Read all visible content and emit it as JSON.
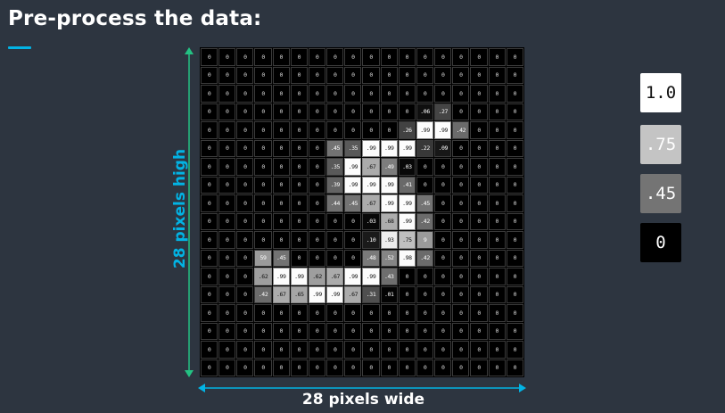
{
  "title": "Pre-process the data:",
  "axis_labels": {
    "height": "28 pixels high",
    "width": "28 pixels wide"
  },
  "legend": [
    {
      "label": "1.0",
      "bg": "#ffffff",
      "fg": "#111111"
    },
    {
      "label": ".75",
      "bg": "#c4c4c4",
      "fg": "#ffffff"
    },
    {
      "label": ".45",
      "bg": "#747474",
      "fg": "#ffffff"
    },
    {
      "label": "0",
      "bg": "#000000",
      "fg": "#ffffff"
    }
  ],
  "colors": {
    "accent": "#02b3e4",
    "background": "#2d3540"
  },
  "grid": {
    "rows": 18,
    "cols": 18,
    "nonzero": [
      {
        "r": 3,
        "c": 12,
        "v": ".06"
      },
      {
        "r": 3,
        "c": 13,
        "v": ".27"
      },
      {
        "r": 4,
        "c": 11,
        "v": ".26"
      },
      {
        "r": 4,
        "c": 12,
        "v": ".99"
      },
      {
        "r": 4,
        "c": 13,
        "v": ".99"
      },
      {
        "r": 4,
        "c": 14,
        "v": ".42"
      },
      {
        "r": 5,
        "c": 7,
        "v": ".45"
      },
      {
        "r": 5,
        "c": 8,
        "v": ".35"
      },
      {
        "r": 5,
        "c": 9,
        "v": ".99"
      },
      {
        "r": 5,
        "c": 10,
        "v": ".99"
      },
      {
        "r": 5,
        "c": 11,
        "v": ".99"
      },
      {
        "r": 5,
        "c": 12,
        "v": ".22"
      },
      {
        "r": 5,
        "c": 13,
        "v": ".09"
      },
      {
        "r": 6,
        "c": 7,
        "v": ".35"
      },
      {
        "r": 6,
        "c": 8,
        "v": ".99"
      },
      {
        "r": 6,
        "c": 9,
        "v": ".67"
      },
      {
        "r": 6,
        "c": 10,
        "v": ".49"
      },
      {
        "r": 6,
        "c": 11,
        "v": ".03"
      },
      {
        "r": 7,
        "c": 7,
        "v": ".39"
      },
      {
        "r": 7,
        "c": 8,
        "v": ".99"
      },
      {
        "r": 7,
        "c": 9,
        "v": ".99"
      },
      {
        "r": 7,
        "c": 10,
        "v": ".99"
      },
      {
        "r": 7,
        "c": 11,
        "v": ".41"
      },
      {
        "r": 8,
        "c": 7,
        "v": ".44"
      },
      {
        "r": 8,
        "c": 8,
        "v": ".45"
      },
      {
        "r": 8,
        "c": 9,
        "v": ".67"
      },
      {
        "r": 8,
        "c": 10,
        "v": ".99"
      },
      {
        "r": 8,
        "c": 11,
        "v": ".99"
      },
      {
        "r": 8,
        "c": 12,
        "v": ".45"
      },
      {
        "r": 9,
        "c": 9,
        "v": ".03"
      },
      {
        "r": 9,
        "c": 10,
        "v": ".68"
      },
      {
        "r": 9,
        "c": 11,
        "v": ".99"
      },
      {
        "r": 9,
        "c": 12,
        "v": ".42"
      },
      {
        "r": 10,
        "c": 9,
        "v": ".10"
      },
      {
        "r": 10,
        "c": 10,
        "v": ".93"
      },
      {
        "r": 10,
        "c": 11,
        "v": ".75"
      },
      {
        "r": 10,
        "c": 12,
        "v": "9"
      },
      {
        "r": 11,
        "c": 3,
        "v": "59"
      },
      {
        "r": 11,
        "c": 4,
        "v": ".45"
      },
      {
        "r": 11,
        "c": 9,
        "v": ".48"
      },
      {
        "r": 11,
        "c": 10,
        "v": ".52"
      },
      {
        "r": 11,
        "c": 11,
        "v": ".98"
      },
      {
        "r": 11,
        "c": 12,
        "v": ".42"
      },
      {
        "r": 12,
        "c": 3,
        "v": ".62"
      },
      {
        "r": 12,
        "c": 4,
        "v": ".99"
      },
      {
        "r": 12,
        "c": 5,
        "v": ".99"
      },
      {
        "r": 12,
        "c": 6,
        "v": ".62"
      },
      {
        "r": 12,
        "c": 7,
        "v": ".67"
      },
      {
        "r": 12,
        "c": 8,
        "v": ".99"
      },
      {
        "r": 12,
        "c": 9,
        "v": ".99"
      },
      {
        "r": 12,
        "c": 10,
        "v": ".43"
      },
      {
        "r": 13,
        "c": 3,
        "v": ".42"
      },
      {
        "r": 13,
        "c": 4,
        "v": ".67"
      },
      {
        "r": 13,
        "c": 5,
        "v": ".65"
      },
      {
        "r": 13,
        "c": 6,
        "v": ".99"
      },
      {
        "r": 13,
        "c": 7,
        "v": ".99"
      },
      {
        "r": 13,
        "c": 8,
        "v": ".67"
      },
      {
        "r": 13,
        "c": 9,
        "v": ".31"
      },
      {
        "r": 13,
        "c": 10,
        "v": ".01"
      }
    ]
  }
}
